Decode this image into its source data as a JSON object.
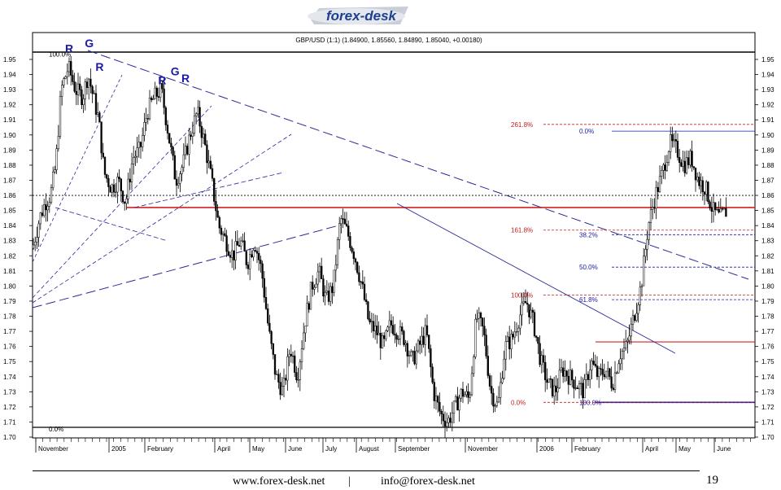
{
  "logo": {
    "text": "forex-desk",
    "accent": "#1f3f8f"
  },
  "footer": {
    "website": "www.forex-desk.net",
    "separator": "|",
    "email": "info@forex-desk.net",
    "page_number": "19"
  },
  "chart_data": {
    "type": "candlestick",
    "title": "GBP/USD (1:1) (1.84900, 1.85560, 1.84890, 1.85040, +0.00180)",
    "ylim": [
      1.7,
      1.96
    ],
    "y_ticks": [
      "1.95",
      "1.94",
      "1.93",
      "1.92",
      "1.91",
      "1.90",
      "1.89",
      "1.88",
      "1.87",
      "1.86",
      "1.85",
      "1.84",
      "1.83",
      "1.82",
      "1.81",
      "1.80",
      "1.79",
      "1.78",
      "1.77",
      "1.76",
      "1.75",
      "1.74",
      "1.73",
      "1.72",
      "1.71",
      "1.70"
    ],
    "x_labels": [
      "November",
      "2005",
      "February",
      "April",
      "May",
      "June",
      "July",
      "August",
      "September",
      "November",
      "2006",
      "February",
      "April",
      "May",
      "June"
    ],
    "price_path": [
      [
        0,
        1.825
      ],
      [
        0.02,
        1.845
      ],
      [
        0.035,
        1.855
      ],
      [
        0.05,
        1.86
      ],
      [
        0.065,
        1.88
      ],
      [
        0.08,
        1.93
      ],
      [
        0.1,
        1.945
      ],
      [
        0.12,
        1.93
      ],
      [
        0.14,
        1.925
      ],
      [
        0.155,
        1.94
      ],
      [
        0.17,
        1.925
      ],
      [
        0.185,
        1.91
      ],
      [
        0.2,
        1.875
      ],
      [
        0.22,
        1.865
      ],
      [
        0.24,
        1.87
      ],
      [
        0.26,
        1.855
      ],
      [
        0.28,
        1.885
      ],
      [
        0.3,
        1.89
      ],
      [
        0.32,
        1.915
      ],
      [
        0.34,
        1.925
      ],
      [
        0.36,
        1.93
      ],
      [
        0.38,
        1.9
      ],
      [
        0.4,
        1.87
      ],
      [
        0.42,
        1.88
      ],
      [
        0.44,
        1.9
      ],
      [
        0.46,
        1.915
      ],
      [
        0.48,
        1.895
      ],
      [
        0.5,
        1.87
      ],
      [
        0.52,
        1.84
      ],
      [
        0.54,
        1.83
      ],
      [
        0.56,
        1.82
      ],
      [
        0.58,
        1.83
      ],
      [
        0.6,
        1.815
      ],
      [
        0.62,
        1.83
      ],
      [
        0.64,
        1.81
      ],
      [
        0.66,
        1.77
      ],
      [
        0.68,
        1.74
      ],
      [
        0.7,
        1.73
      ],
      [
        0.72,
        1.76
      ],
      [
        0.74,
        1.74
      ],
      [
        0.76,
        1.775
      ],
      [
        0.78,
        1.8
      ],
      [
        0.8,
        1.81
      ],
      [
        0.82,
        1.79
      ],
      [
        0.84,
        1.8
      ],
      [
        0.86,
        1.845
      ],
      [
        0.88,
        1.835
      ],
      [
        0.9,
        1.82
      ],
      [
        0.92,
        1.8
      ],
      [
        0.94,
        1.775
      ],
      [
        0.96,
        1.77
      ],
      [
        0.98,
        1.76
      ],
      [
        1.0,
        1.775
      ],
      [
        1.02,
        1.77
      ],
      [
        1.04,
        1.765
      ],
      [
        1.06,
        1.75
      ],
      [
        1.08,
        1.76
      ],
      [
        1.1,
        1.77
      ],
      [
        1.12,
        1.73
      ],
      [
        1.14,
        1.715
      ],
      [
        1.16,
        1.71
      ],
      [
        1.18,
        1.72
      ],
      [
        1.2,
        1.73
      ],
      [
        1.22,
        1.725
      ],
      [
        1.24,
        1.78
      ],
      [
        1.26,
        1.77
      ],
      [
        1.28,
        1.73
      ],
      [
        1.3,
        1.72
      ],
      [
        1.32,
        1.76
      ],
      [
        1.34,
        1.765
      ],
      [
        1.36,
        1.78
      ],
      [
        1.38,
        1.79
      ],
      [
        1.4,
        1.775
      ],
      [
        1.42,
        1.75
      ],
      [
        1.44,
        1.735
      ],
      [
        1.46,
        1.73
      ],
      [
        1.48,
        1.745
      ],
      [
        1.5,
        1.74
      ],
      [
        1.52,
        1.735
      ],
      [
        1.54,
        1.73
      ],
      [
        1.56,
        1.75
      ],
      [
        1.58,
        1.74
      ],
      [
        1.6,
        1.745
      ],
      [
        1.62,
        1.735
      ],
      [
        1.64,
        1.755
      ],
      [
        1.66,
        1.76
      ],
      [
        1.68,
        1.78
      ],
      [
        1.7,
        1.8
      ],
      [
        1.72,
        1.84
      ],
      [
        1.74,
        1.86
      ],
      [
        1.76,
        1.875
      ],
      [
        1.78,
        1.895
      ],
      [
        1.8,
        1.89
      ],
      [
        1.82,
        1.88
      ],
      [
        1.84,
        1.885
      ],
      [
        1.86,
        1.87
      ],
      [
        1.88,
        1.865
      ],
      [
        1.9,
        1.85
      ],
      [
        1.92,
        1.845
      ],
      [
        1.94,
        1.85
      ]
    ],
    "horizontal_levels": [
      {
        "value": 1.86,
        "style": "dotted",
        "color": "#000000"
      },
      {
        "value": 1.852,
        "style": "solid",
        "color": "#d42020"
      },
      {
        "value": 1.763,
        "style": "solid",
        "color": "#d42020"
      },
      {
        "value": 1.723,
        "style": "solid",
        "color": "#1a1aa6"
      }
    ],
    "fibonacci": [
      {
        "label": "0.0%",
        "value": 1.9025,
        "color": "#1a1aa6"
      },
      {
        "label": "38.2%",
        "value": 1.834,
        "color": "#1a1aa6"
      },
      {
        "label": "50.0%",
        "value": 1.8125,
        "color": "#1a1aa6"
      },
      {
        "label": "61.8%",
        "value": 1.791,
        "color": "#1a1aa6"
      },
      {
        "label": "100.0%",
        "value": 1.723,
        "color": "#1a1aa6"
      },
      {
        "label": "261.8%",
        "value": 1.907,
        "color": "#c02020"
      },
      {
        "label": "161.8%",
        "value": 1.837,
        "color": "#c02020"
      },
      {
        "label": "100.0%",
        "value": 1.794,
        "color": "#c02020"
      },
      {
        "label": "0.0%",
        "value": 1.723,
        "color": "#c02020"
      }
    ],
    "left_fib": [
      {
        "label": "100.0%",
        "value": 1.9535
      },
      {
        "label": "0.0%",
        "value": 1.7055
      }
    ],
    "pattern_labels": [
      {
        "text": "R",
        "x": 0.1,
        "y": 1.9545
      },
      {
        "text": "G",
        "x": 0.155,
        "y": 1.958
      },
      {
        "text": "R",
        "x": 0.185,
        "y": 1.9425
      },
      {
        "text": "R",
        "x": 0.36,
        "y": 1.9335
      },
      {
        "text": "G",
        "x": 0.395,
        "y": 1.9395
      },
      {
        "text": "R",
        "x": 0.425,
        "y": 1.935
      }
    ]
  }
}
